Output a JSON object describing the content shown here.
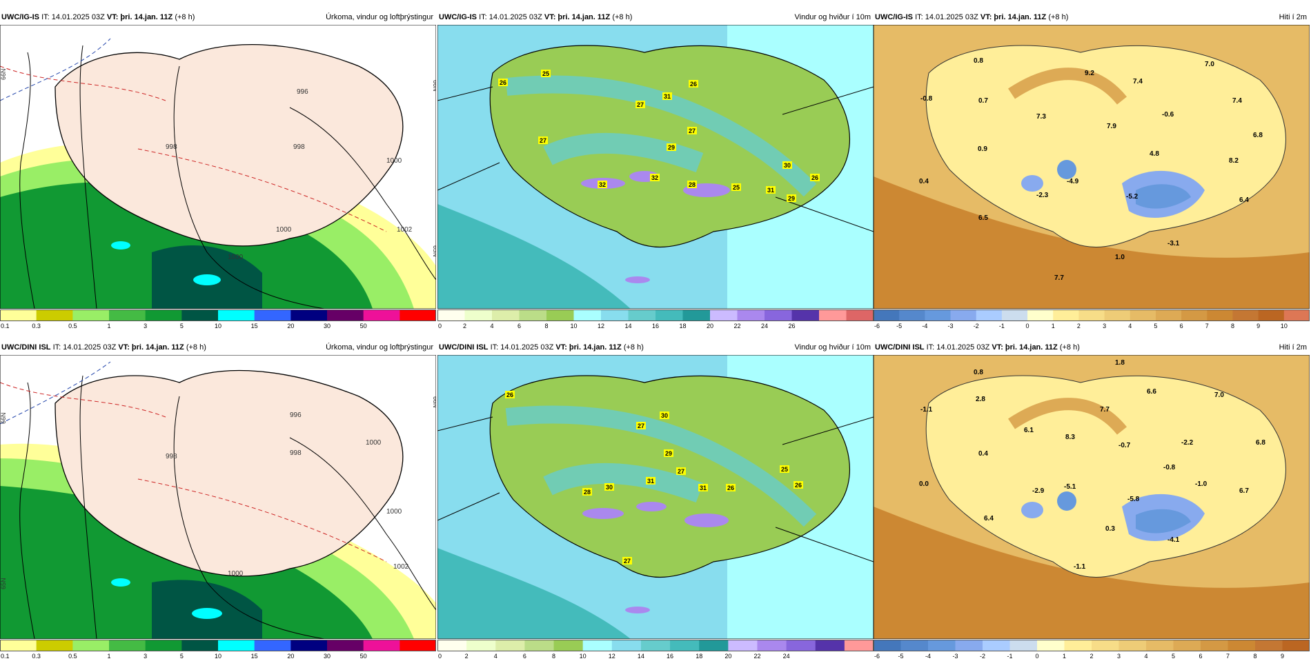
{
  "panels": [
    {
      "model": "UWC/IG-IS",
      "it": "IT: 14.01.2025 03Z",
      "vt_label": "VT:",
      "vt": "þri. 14.jan. 11Z",
      "lead": "(+8 h)",
      "title": "Úrkoma, vindur og loftþrýstingur"
    },
    {
      "model": "UWC/IG-IS",
      "it": "IT: 14.01.2025 03Z",
      "vt_label": "VT:",
      "vt": "þri. 14.jan. 11Z",
      "lead": "(+8 h)",
      "title": "Vindur og hviður í 10m"
    },
    {
      "model": "UWC/IG-IS",
      "it": "IT: 14.01.2025 03Z",
      "vt_label": "VT:",
      "vt": "þri. 14.jan. 11Z",
      "lead": "(+8 h)",
      "title": "Hiti í 2m"
    },
    {
      "model": "UWC/DINI ISL",
      "it": "IT: 14.01.2025 03Z",
      "vt_label": "VT:",
      "vt": "þri. 14.jan. 11Z",
      "lead": "(+8 h)",
      "title": "Úrkoma, vindur og loftþrýstingur"
    },
    {
      "model": "UWC/DINI ISL",
      "it": "IT: 14.01.2025 03Z",
      "vt_label": "VT:",
      "vt": "þri. 14.jan. 11Z",
      "lead": "(+8 h)",
      "title": "Vindur og hviður í 10m"
    },
    {
      "model": "UWC/DINI ISL",
      "it": "IT: 14.01.2025 03Z",
      "vt_label": "VT:",
      "vt": "þri. 14.jan. 11Z",
      "lead": "(+8 h)",
      "title": "Hiti í 2m"
    }
  ],
  "colorbars": {
    "precip": {
      "colors": [
        "#ffff99",
        "#cccc00",
        "#99ee66",
        "#44bb44",
        "#119933",
        "#005544",
        "#00ffff",
        "#3366ff",
        "#000080",
        "#660066",
        "#ee1199",
        "#ff0000"
      ],
      "labels": [
        "0.1",
        "0.3",
        "0.5",
        "1",
        "3",
        "5",
        "10",
        "15",
        "20",
        "30",
        "50"
      ]
    },
    "wind_top": {
      "colors": [
        "#ffffee",
        "#eeffcc",
        "#ddeeaa",
        "#bbdd88",
        "#99cc55",
        "#aaffff",
        "#88ddee",
        "#66cccc",
        "#44bbbb",
        "#229999",
        "#ccbbff",
        "#aa88ee",
        "#8866dd",
        "#5533aa",
        "#ff9999",
        "#dd6666"
      ],
      "labels": [
        "0",
        "2",
        "4",
        "6",
        "8",
        "10",
        "12",
        "14",
        "16",
        "18",
        "20",
        "22",
        "24",
        "26"
      ]
    },
    "wind_bottom": {
      "colors": [
        "#ffffee",
        "#eeffcc",
        "#ddeeaa",
        "#bbdd88",
        "#99cc55",
        "#aaffff",
        "#88ddee",
        "#66cccc",
        "#44bbbb",
        "#229999",
        "#ccbbff",
        "#aa88ee",
        "#8866dd",
        "#5533aa",
        "#ff9999"
      ],
      "labels": [
        "0",
        "2",
        "4",
        "6",
        "8",
        "10",
        "12",
        "14",
        "16",
        "18",
        "20",
        "22",
        "24"
      ]
    },
    "temp_top": {
      "colors": [
        "#4477bb",
        "#5588cc",
        "#6699dd",
        "#88aaee",
        "#aaccff",
        "#ccddee",
        "#ffffcc",
        "#ffee99",
        "#f7dd88",
        "#eecc77",
        "#e6bb66",
        "#ddaa55",
        "#d49944",
        "#cc8833",
        "#c47733",
        "#bb6622",
        "#dd7755"
      ],
      "labels": [
        "-6",
        "-5",
        "-4",
        "-3",
        "-2",
        "-1",
        "0",
        "1",
        "2",
        "3",
        "4",
        "5",
        "6",
        "7",
        "8",
        "9",
        "10"
      ]
    },
    "temp_bottom": {
      "colors": [
        "#4477bb",
        "#5588cc",
        "#6699dd",
        "#88aaee",
        "#aaccff",
        "#ccddee",
        "#ffffcc",
        "#ffee99",
        "#f7dd88",
        "#eecc77",
        "#e6bb66",
        "#ddaa55",
        "#d49944",
        "#cc8833",
        "#c47733",
        "#bb6622"
      ],
      "labels": [
        "-6",
        "-5",
        "-4",
        "-3",
        "-2",
        "-1",
        "0",
        "1",
        "2",
        "3",
        "4",
        "5",
        "6",
        "7",
        "8",
        "9"
      ]
    }
  },
  "pressure_labels": {
    "top": [
      "996",
      "998",
      "998",
      "1000",
      "1002",
      "1000",
      "1000"
    ],
    "bottom": [
      "996",
      "998",
      "998",
      "1000",
      "1000",
      "1002",
      "1000"
    ]
  },
  "gust_labels": {
    "top": [
      "25",
      "26",
      "27",
      "31",
      "26",
      "27",
      "27",
      "29",
      "32",
      "32",
      "28",
      "25",
      "31",
      "30",
      "29",
      "26"
    ],
    "bottom": [
      "26",
      "30",
      "27",
      "29",
      "27",
      "31",
      "28",
      "30",
      "31",
      "26",
      "25",
      "26",
      "27"
    ]
  },
  "temp_labels": {
    "top": [
      "0.8",
      "-0.8",
      "0.7",
      "9.2",
      "7.4",
      "7.0",
      "7.4",
      "7.3",
      "7.9",
      "-0.6",
      "6.8",
      "0.9",
      "4.8",
      "8.2",
      "0.4",
      "-2.3",
      "-4.9",
      "-5.2",
      "6.4",
      "6.5",
      "-3.1",
      "1.0",
      "7.7"
    ],
    "bottom": [
      "0.8",
      "1.8",
      "-1.1",
      "2.8",
      "6.6",
      "7.0",
      "7.7",
      "6.1",
      "8.3",
      "-0.7",
      "-2.2",
      "6.8",
      "0.4",
      "-0.8",
      "0.0",
      "-2.9",
      "-5.1",
      "-5.8",
      "-1.0",
      "6.7",
      "6.4",
      "0.3",
      "-4.1",
      "-1.1"
    ]
  },
  "lat_labels": {
    "n66": "66N",
    "n65": "65N"
  }
}
